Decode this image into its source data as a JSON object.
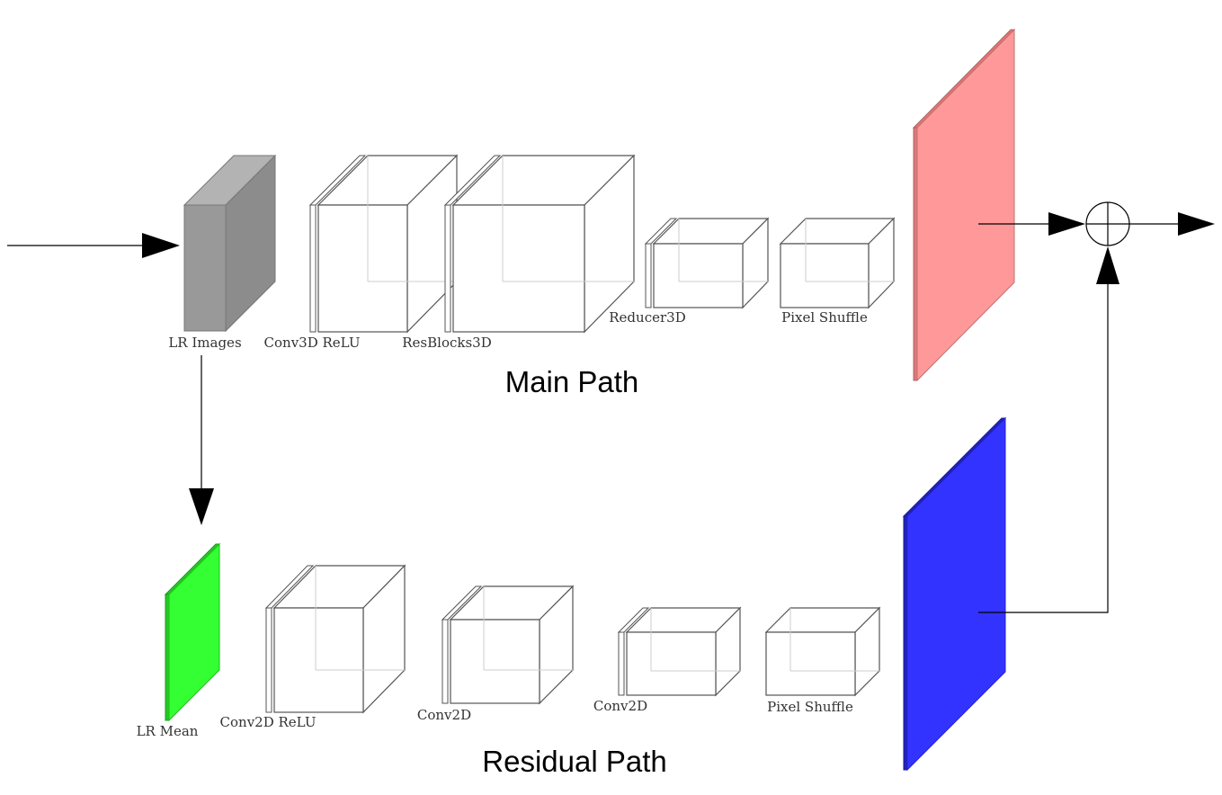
{
  "main_path": {
    "title": "Main Path",
    "blocks": [
      {
        "label": "LR Images"
      },
      {
        "label": "Conv3D ReLU"
      },
      {
        "label": "ResBlocks3D"
      },
      {
        "label": "Reducer3D"
      },
      {
        "label": "Pixel Shuffle"
      }
    ]
  },
  "residual_path": {
    "title": "Residual Path",
    "blocks": [
      {
        "label": "LR Mean"
      },
      {
        "label": "Conv2D ReLU"
      },
      {
        "label": "Conv2D"
      },
      {
        "label": "Conv2D"
      },
      {
        "label": "Pixel Shuffle"
      }
    ]
  },
  "colors": {
    "lr_images": "#999999",
    "main_output": "#ff9999",
    "lr_mean": "#33ff33",
    "residual_output": "#3333ff",
    "edge": "#000000"
  },
  "operations": {
    "sum_node": "element-wise-addition-icon"
  }
}
